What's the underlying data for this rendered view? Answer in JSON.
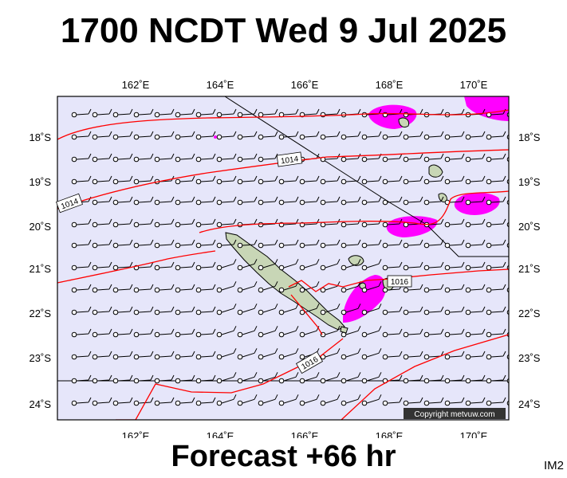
{
  "header": {
    "title": "1700 NCDT Wed 9 Jul 2025"
  },
  "footer": {
    "forecast": "Forecast +66 hr",
    "image_id": "IM2"
  },
  "map": {
    "lon_ticks": [
      "162˚E",
      "164˚E",
      "166˚E",
      "168˚E",
      "170˚E"
    ],
    "lat_ticks": [
      "18˚S",
      "19˚S",
      "20˚S",
      "21˚S",
      "22˚S",
      "23˚S",
      "24˚S"
    ],
    "isobar_labels": [
      "1014",
      "1014",
      "1016",
      "1016"
    ],
    "copyright": "Copyright metvuw.com",
    "colors": {
      "ocean": "#e6e6fa",
      "isobar": "#ff0000",
      "rain": "#ff00ff",
      "land": "#c8d6b6",
      "boundary": "#000000"
    }
  }
}
